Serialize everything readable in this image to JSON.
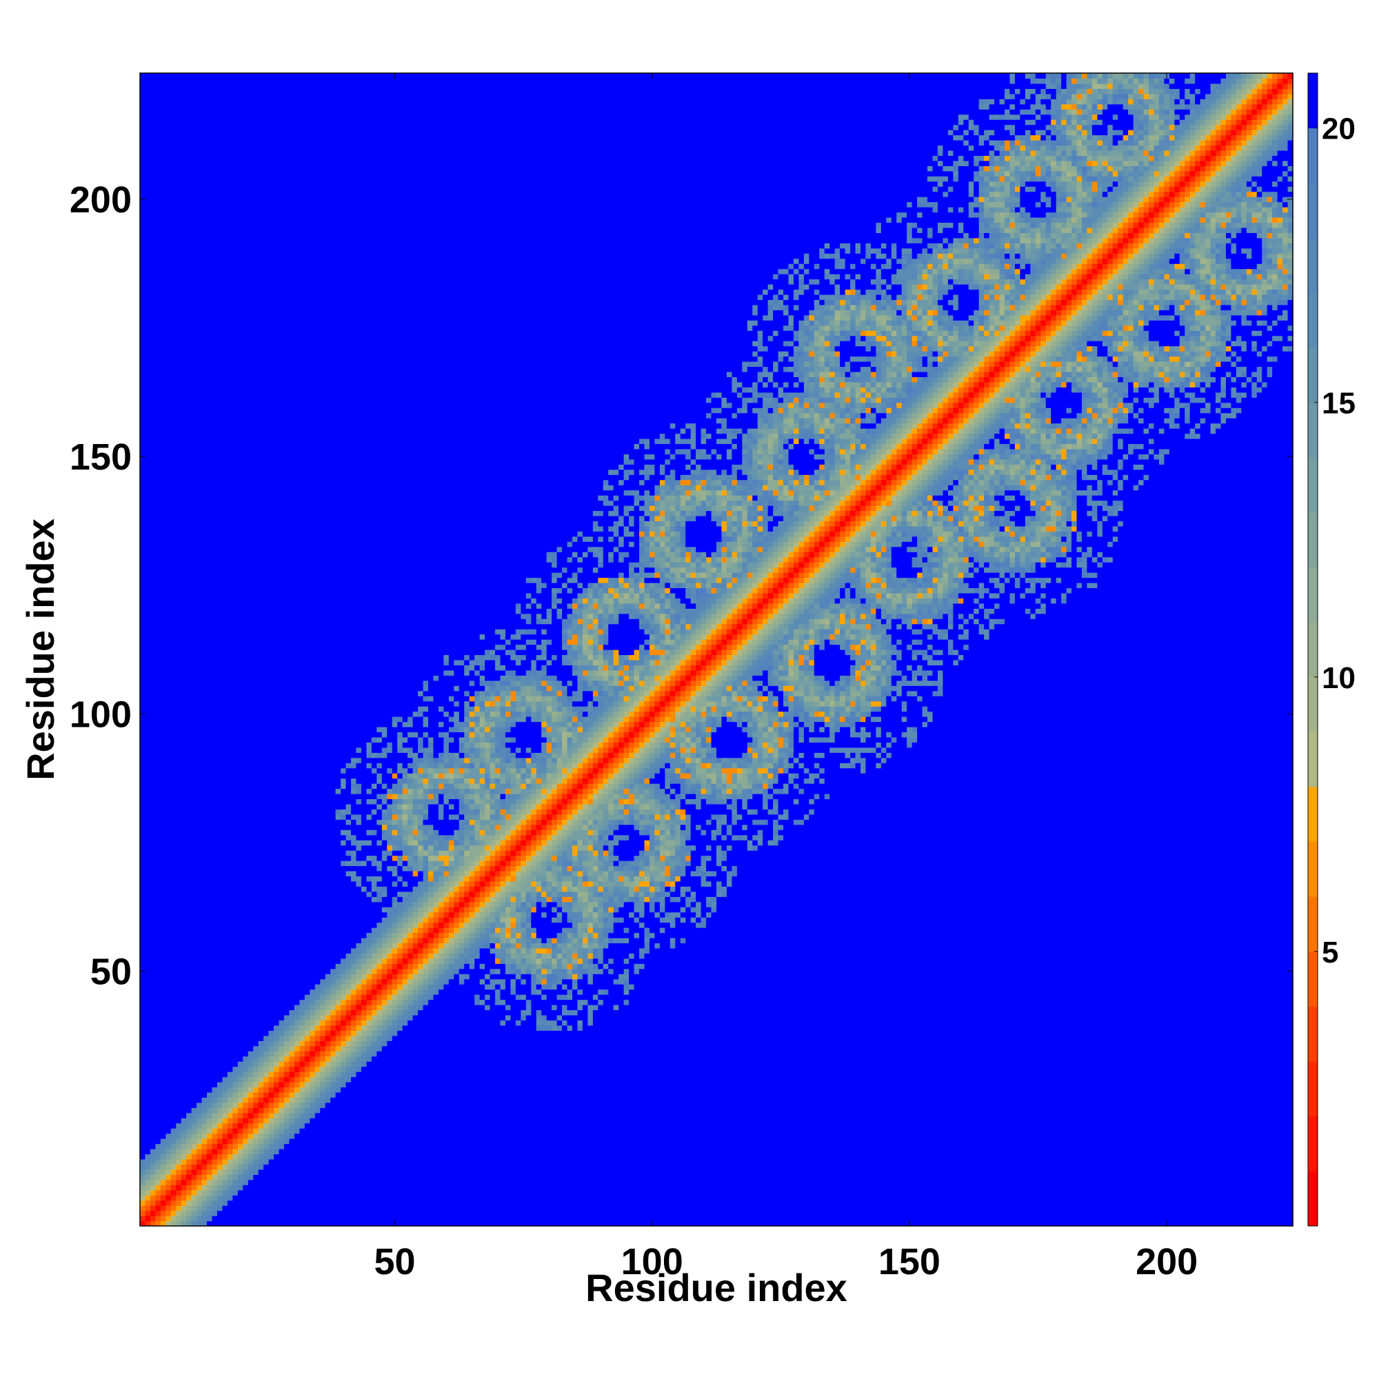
{
  "chart_data": {
    "type": "heatmap",
    "title": "",
    "xlabel": "Residue index",
    "ylabel": "Residue index",
    "n_residues": 224,
    "xlim": [
      1,
      224
    ],
    "ylim": [
      1,
      224
    ],
    "xticks": [
      50,
      100,
      150,
      200
    ],
    "yticks": [
      50,
      100,
      150,
      200
    ],
    "tick_labels_x": [
      "50",
      "100",
      "150",
      "200"
    ],
    "tick_labels_y": [
      "50",
      "100",
      "150",
      "200"
    ],
    "value_range": [
      0,
      21
    ],
    "colorbar": {
      "ticks": [
        5,
        10,
        15,
        20
      ],
      "labels": [
        "5",
        "10",
        "15",
        "20"
      ],
      "levels": [
        {
          "min": 0,
          "max": 1,
          "color": "#ff0000"
        },
        {
          "min": 1,
          "max": 2,
          "color": "#ff1500"
        },
        {
          "min": 2,
          "max": 3,
          "color": "#ff2a00"
        },
        {
          "min": 3,
          "max": 4,
          "color": "#ff4000"
        },
        {
          "min": 4,
          "max": 5,
          "color": "#ff5a00"
        },
        {
          "min": 5,
          "max": 6,
          "color": "#ff7400"
        },
        {
          "min": 6,
          "max": 7,
          "color": "#ff8c00"
        },
        {
          "min": 7,
          "max": 8,
          "color": "#ffa500"
        },
        {
          "min": 8,
          "max": 9,
          "color": "#b0b883"
        },
        {
          "min": 9,
          "max": 10,
          "color": "#a4b48a"
        },
        {
          "min": 10,
          "max": 11,
          "color": "#98b090"
        },
        {
          "min": 11,
          "max": 12,
          "color": "#8cab96"
        },
        {
          "min": 12,
          "max": 13,
          "color": "#80a59c"
        },
        {
          "min": 13,
          "max": 14,
          "color": "#769fa3"
        },
        {
          "min": 14,
          "max": 15,
          "color": "#6c99a9"
        },
        {
          "min": 15,
          "max": 16,
          "color": "#6393ae"
        },
        {
          "min": 16,
          "max": 17,
          "color": "#5b8db4"
        },
        {
          "min": 17,
          "max": 18,
          "color": "#5788b8"
        },
        {
          "min": 18,
          "max": 19,
          "color": "#5383bd"
        },
        {
          "min": 19,
          "max": 20,
          "color": "#4f7ec0"
        },
        {
          "min": 20,
          "max": 21,
          "color": "#0000ff"
        }
      ]
    },
    "description_of_pattern": {
      "diagonal_band": "Distances < 5 along the main diagonal (red), widening through orange and grey-green to ~20 within about 12 residues of the diagonal.",
      "background": "Distances >= 20 (blue) everywhere else.",
      "contact_lobes_center_residues": [
        {
          "i": 60,
          "j": 80
        },
        {
          "i": 75,
          "j": 95
        },
        {
          "i": 95,
          "j": 115
        },
        {
          "i": 110,
          "j": 135
        },
        {
          "i": 130,
          "j": 150
        },
        {
          "i": 140,
          "j": 170
        },
        {
          "i": 160,
          "j": 180
        },
        {
          "i": 175,
          "j": 200
        },
        {
          "i": 190,
          "j": 215
        }
      ]
    }
  }
}
